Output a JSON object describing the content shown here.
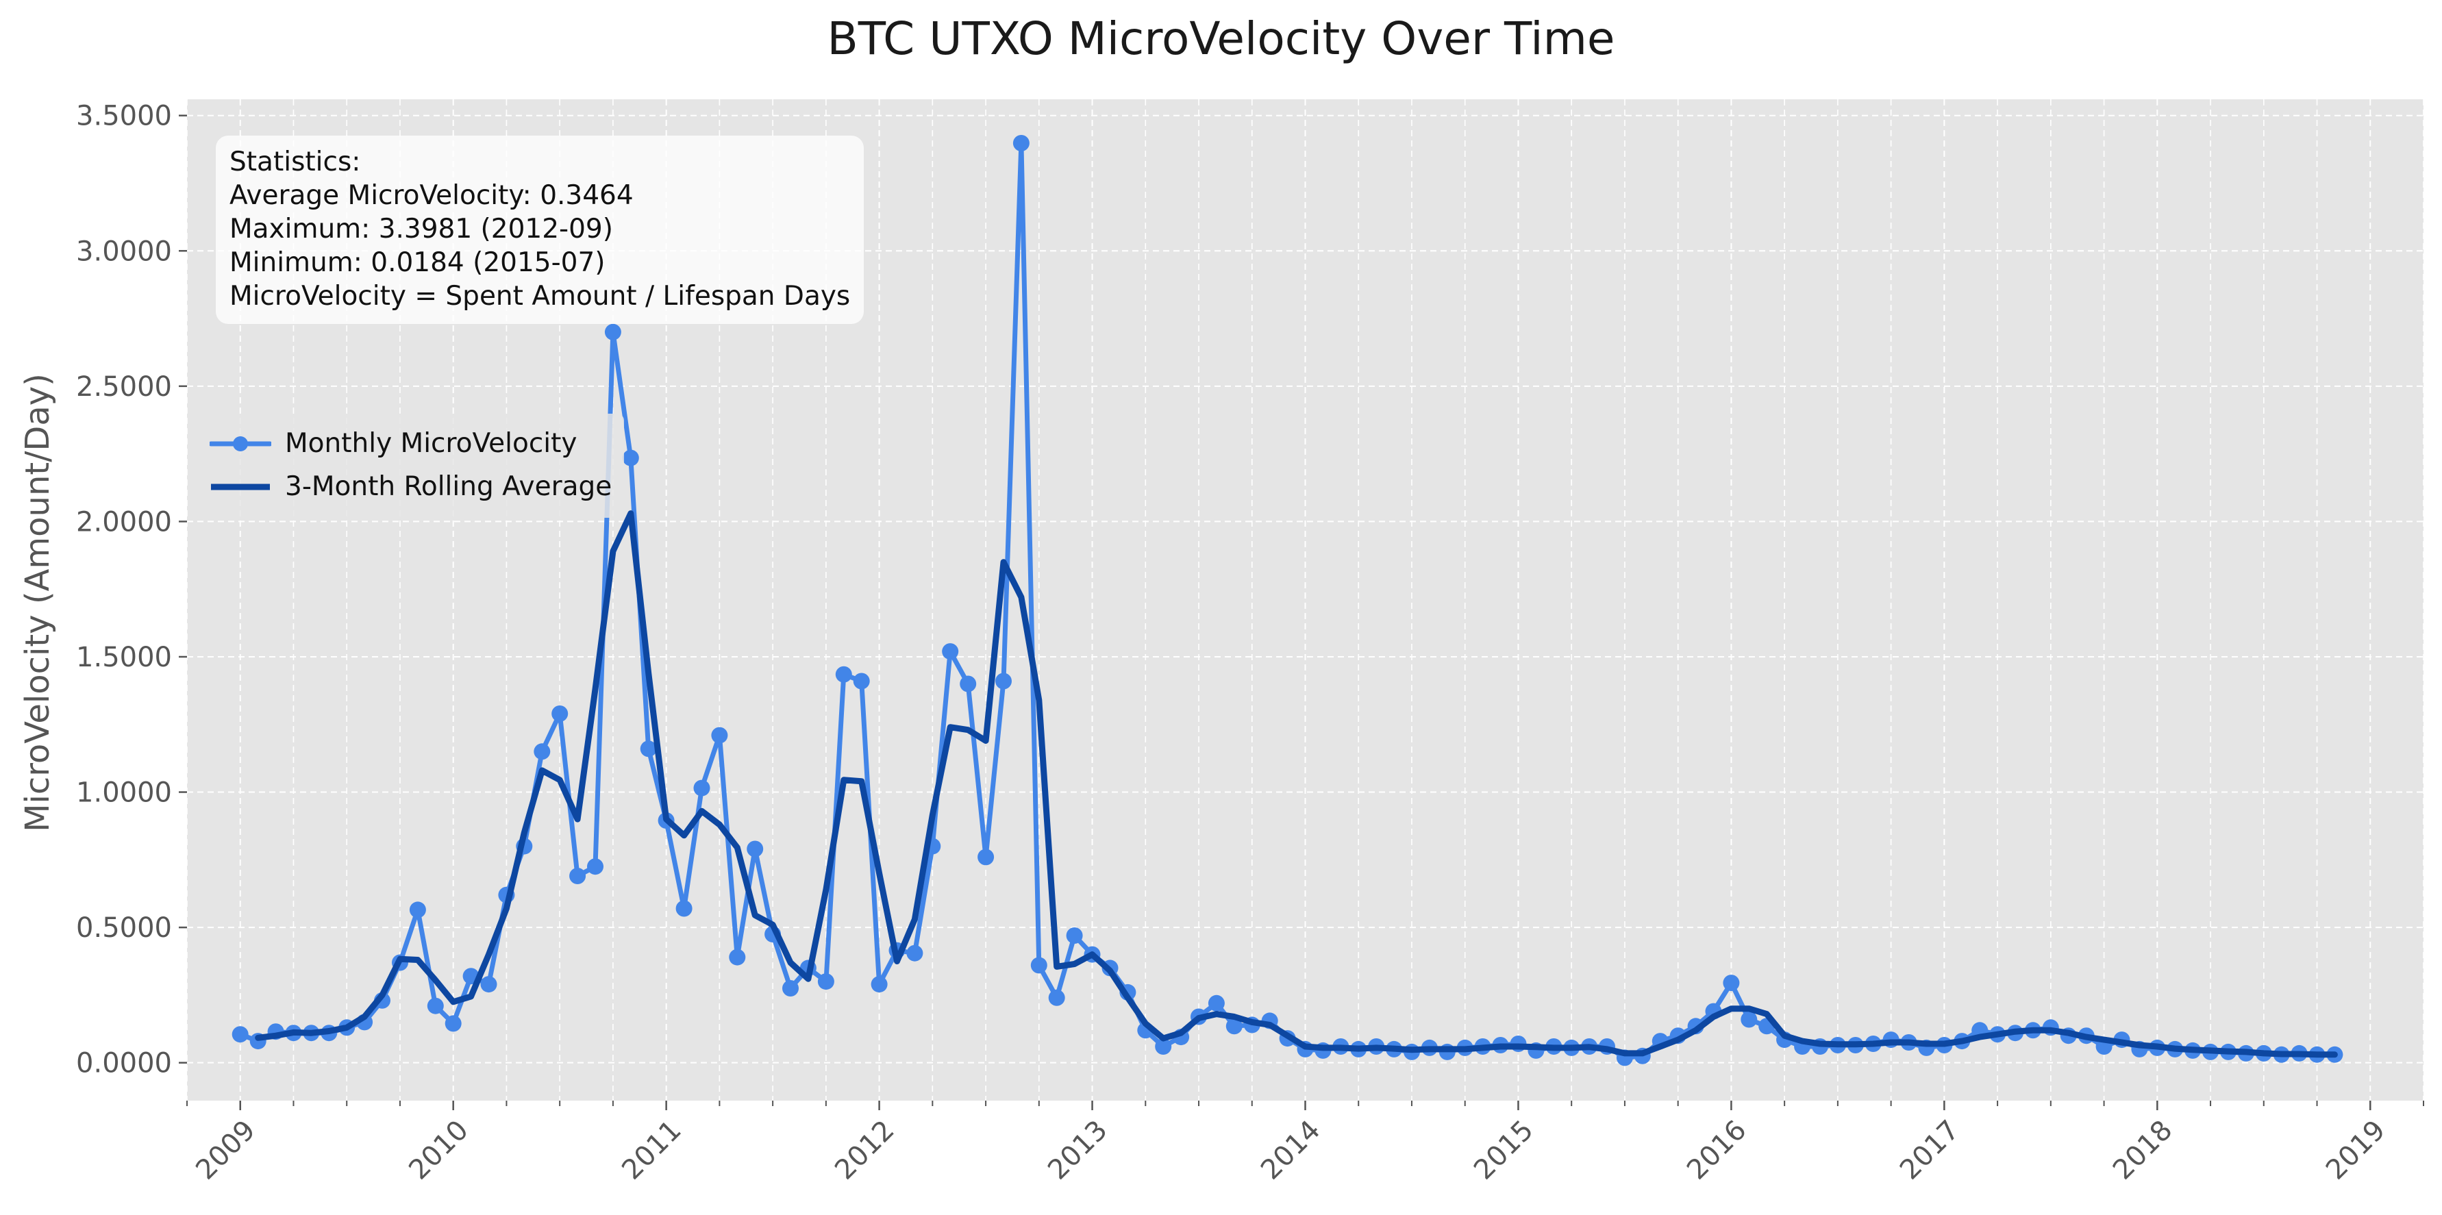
{
  "chart_data": {
    "type": "line",
    "title": "BTC UTXO MicroVelocity Over Time",
    "xlabel": "",
    "ylabel": "MicroVelocity (Amount/Day)",
    "ylim": [
      -0.14,
      3.56
    ],
    "yticks": [
      "0.0000",
      "0.5000",
      "1.0000",
      "1.5000",
      "2.0000",
      "2.5000",
      "3.0000",
      "3.5000"
    ],
    "ytick_values": [
      0,
      0.5,
      1.0,
      1.5,
      2.0,
      2.5,
      3.0,
      3.5
    ],
    "xticks": [
      "2009",
      "2010",
      "2011",
      "2012",
      "2013",
      "2014",
      "2015",
      "2016",
      "2017",
      "2018",
      "2019"
    ],
    "xlim": [
      "2008-10",
      "2019-04"
    ],
    "grid": true,
    "legend_position": "center-left",
    "x": [
      "2009-01",
      "2009-02",
      "2009-03",
      "2009-04",
      "2009-05",
      "2009-06",
      "2009-07",
      "2009-08",
      "2009-09",
      "2009-10",
      "2009-11",
      "2009-12",
      "2010-01",
      "2010-02",
      "2010-03",
      "2010-04",
      "2010-05",
      "2010-06",
      "2010-07",
      "2010-08",
      "2010-09",
      "2010-10",
      "2010-11",
      "2010-12",
      "2011-01",
      "2011-02",
      "2011-03",
      "2011-04",
      "2011-05",
      "2011-06",
      "2011-07",
      "2011-08",
      "2011-09",
      "2011-10",
      "2011-11",
      "2011-12",
      "2012-01",
      "2012-02",
      "2012-03",
      "2012-04",
      "2012-05",
      "2012-06",
      "2012-07",
      "2012-08",
      "2012-09",
      "2012-10",
      "2012-11",
      "2012-12",
      "2013-01",
      "2013-02",
      "2013-03",
      "2013-04",
      "2013-05",
      "2013-06",
      "2013-07",
      "2013-08",
      "2013-09",
      "2013-10",
      "2013-11",
      "2013-12",
      "2014-01",
      "2014-02",
      "2014-03",
      "2014-04",
      "2014-05",
      "2014-06",
      "2014-07",
      "2014-08",
      "2014-09",
      "2014-10",
      "2014-11",
      "2014-12",
      "2015-01",
      "2015-02",
      "2015-03",
      "2015-04",
      "2015-05",
      "2015-06",
      "2015-07",
      "2015-08",
      "2015-09",
      "2015-10",
      "2015-11",
      "2015-12",
      "2016-01",
      "2016-02",
      "2016-03",
      "2016-04",
      "2016-05",
      "2016-06",
      "2016-07",
      "2016-08",
      "2016-09",
      "2016-10",
      "2016-11",
      "2016-12",
      "2017-01",
      "2017-02",
      "2017-03",
      "2017-04",
      "2017-05",
      "2017-06",
      "2017-07",
      "2017-08",
      "2017-09",
      "2017-10",
      "2017-11",
      "2017-12",
      "2018-01",
      "2018-02",
      "2018-03",
      "2018-04",
      "2018-05",
      "2018-06",
      "2018-07",
      "2018-08",
      "2018-09",
      "2018-10",
      "2018-11"
    ],
    "series": [
      {
        "name": "Monthly MicroVelocity",
        "color": "#4285e8",
        "marker": "circle",
        "values": [
          0.105,
          0.08,
          0.115,
          0.11,
          0.11,
          0.11,
          0.13,
          0.15,
          0.23,
          0.37,
          0.565,
          0.21,
          0.145,
          0.32,
          0.29,
          0.62,
          0.8,
          1.15,
          1.29,
          0.69,
          0.725,
          2.7,
          2.235,
          1.16,
          0.895,
          0.57,
          1.015,
          1.21,
          0.39,
          0.79,
          0.475,
          0.275,
          0.35,
          0.3,
          1.435,
          1.41,
          0.29,
          0.415,
          0.405,
          0.8,
          1.52,
          1.4,
          0.76,
          1.41,
          3.3981,
          0.36,
          0.24,
          0.47,
          0.4,
          0.35,
          0.26,
          0.12,
          0.06,
          0.095,
          0.17,
          0.22,
          0.135,
          0.14,
          0.155,
          0.09,
          0.05,
          0.045,
          0.06,
          0.05,
          0.06,
          0.05,
          0.04,
          0.055,
          0.04,
          0.055,
          0.06,
          0.065,
          0.07,
          0.045,
          0.06,
          0.055,
          0.06,
          0.06,
          0.0184,
          0.025,
          0.08,
          0.1,
          0.135,
          0.19,
          0.295,
          0.16,
          0.135,
          0.085,
          0.06,
          0.06,
          0.065,
          0.065,
          0.07,
          0.085,
          0.075,
          0.055,
          0.065,
          0.08,
          0.12,
          0.105,
          0.11,
          0.12,
          0.13,
          0.1,
          0.1,
          0.06,
          0.085,
          0.05,
          0.055,
          0.05,
          0.045,
          0.04,
          0.04,
          0.035,
          0.035,
          0.03,
          0.035,
          0.03,
          0.03
        ]
      },
      {
        "name": "3-Month Rolling Average",
        "color": "#0d47a1",
        "marker": "none",
        "values": [
          null,
          0.092,
          0.1,
          0.112,
          0.11,
          0.117,
          0.13,
          0.17,
          0.25,
          0.383,
          0.38,
          0.305,
          0.225,
          0.245,
          0.4,
          0.57,
          0.85,
          1.08,
          1.045,
          0.9,
          1.38,
          1.89,
          2.03,
          1.44,
          0.9,
          0.84,
          0.93,
          0.88,
          0.795,
          0.545,
          0.51,
          0.37,
          0.31,
          0.64,
          1.045,
          1.04,
          0.7,
          0.375,
          0.53,
          0.915,
          1.24,
          1.23,
          1.19,
          1.85,
          1.72,
          1.34,
          0.355,
          0.365,
          0.4,
          0.34,
          0.24,
          0.145,
          0.09,
          0.11,
          0.165,
          0.18,
          0.17,
          0.15,
          0.14,
          0.1,
          0.06,
          0.055,
          0.055,
          0.052,
          0.055,
          0.052,
          0.048,
          0.05,
          0.05,
          0.05,
          0.055,
          0.06,
          0.06,
          0.058,
          0.055,
          0.055,
          0.058,
          0.05,
          0.035,
          0.035,
          0.06,
          0.085,
          0.12,
          0.17,
          0.2,
          0.2,
          0.18,
          0.1,
          0.08,
          0.07,
          0.068,
          0.068,
          0.07,
          0.075,
          0.075,
          0.07,
          0.07,
          0.08,
          0.095,
          0.105,
          0.115,
          0.12,
          0.12,
          0.11,
          0.095,
          0.085,
          0.075,
          0.065,
          0.06,
          0.052,
          0.048,
          0.045,
          0.042,
          0.04,
          0.035,
          0.032,
          0.032,
          0.03,
          0.03
        ]
      }
    ],
    "stats": {
      "heading": "Statistics:",
      "average": "Average MicroVelocity: 0.3464",
      "maximum": "Maximum: 3.3981 (2012-09)",
      "minimum": "Minimum: 0.0184 (2015-07)",
      "formula": "MicroVelocity = Spent Amount / Lifespan Days"
    }
  }
}
